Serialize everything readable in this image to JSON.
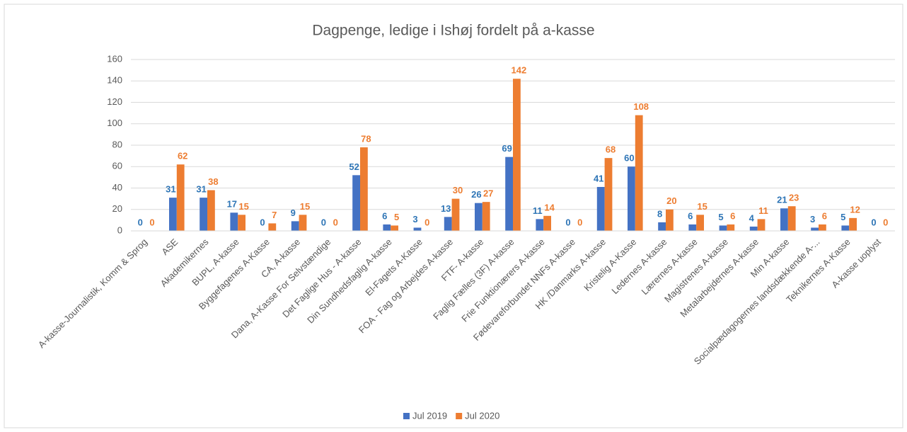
{
  "chart_data": {
    "type": "bar",
    "title": "Dagpenge, ledige i Ishøj fordelt på a-kasse",
    "categories": [
      "A-kasse-Journalistik, Komm & Sprog",
      "ASE",
      "Akademikernes",
      "BUPL, A-kasse",
      "Byggefagenes A-Kasse",
      "CA, A-kasse",
      "Dana, A-Kasse For Selvstændige",
      "Det Faglige Hus - A-kasse",
      "Din Sundhedsfaglig A-kasse",
      "El-Fagets A-Kasse",
      "FOA - Fag og Arbejdes A-kasse",
      "FTF- A-kasse",
      "Faglig Fælles (3F) A-kasse",
      "Frie Funktionærers A-kasse",
      "Fødevareforbundet NNFs A-kasse",
      "HK /Danmarks A-kasse",
      "Kristelig A-Kasse",
      "Ledernes A-kasse",
      "Lærernes A-kasse",
      "Magistrenes A-kasse",
      "Metalarbejdernes A-kasse",
      "Min A-kasse",
      "Socialpædagogernes landsdækkende A-...",
      "Teknikernes A-Kasse",
      "A-kasse uoplyst"
    ],
    "series": [
      {
        "name": "Jul 2019",
        "color": "#4472c4",
        "label_color": "#2e75b6",
        "values": [
          0,
          31,
          31,
          17,
          0,
          9,
          0,
          52,
          6,
          3,
          13,
          26,
          69,
          11,
          0,
          41,
          60,
          8,
          6,
          5,
          4,
          21,
          3,
          5,
          0
        ]
      },
      {
        "name": "Jul 2020",
        "color": "#ed7d31",
        "label_color": "#ed7d31",
        "values": [
          0,
          62,
          38,
          15,
          7,
          15,
          0,
          78,
          5,
          0,
          30,
          27,
          142,
          14,
          0,
          68,
          108,
          20,
          15,
          6,
          11,
          23,
          6,
          12,
          0
        ]
      }
    ],
    "ylim": [
      0,
      160
    ],
    "yticks": [
      0,
      20,
      40,
      60,
      80,
      100,
      120,
      140,
      160
    ],
    "grid": true,
    "legend": "bottom"
  }
}
